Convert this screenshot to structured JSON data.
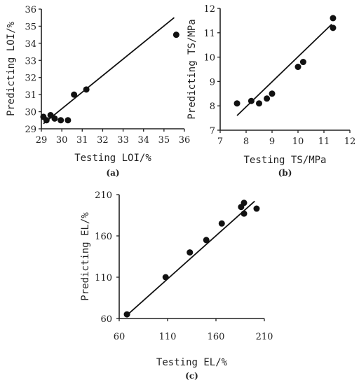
{
  "chart_data": [
    {
      "type": "scatter",
      "panel": "(a)",
      "xlabel": "Testing LOI/%",
      "ylabel": "Predicting LOI/%",
      "xlim": [
        29,
        36
      ],
      "ylim": [
        29,
        36
      ],
      "xticks": [
        "29",
        "30",
        "31",
        "32",
        "33",
        "34",
        "35",
        "36"
      ],
      "yticks": [
        "29",
        "30",
        "31",
        "32",
        "33",
        "34",
        "35",
        "36"
      ],
      "points": [
        {
          "x": 29.1,
          "y": 29.7
        },
        {
          "x": 29.25,
          "y": 29.5
        },
        {
          "x": 29.45,
          "y": 29.8
        },
        {
          "x": 29.65,
          "y": 29.6
        },
        {
          "x": 29.95,
          "y": 29.5
        },
        {
          "x": 30.3,
          "y": 29.5
        },
        {
          "x": 30.6,
          "y": 31.0
        },
        {
          "x": 31.2,
          "y": 31.3
        },
        {
          "x": 35.6,
          "y": 34.5
        }
      ],
      "fit_line": {
        "x": [
          29.1,
          35.5
        ],
        "y": [
          29.3,
          35.5
        ]
      }
    },
    {
      "type": "scatter",
      "panel": "(b)",
      "xlabel": "Testing TS/MPa",
      "ylabel": "Predicting TS/MPa",
      "xlim": [
        7,
        12
      ],
      "ylim": [
        7,
        12
      ],
      "xticks": [
        "7",
        "8",
        "9",
        "10",
        "11",
        "12"
      ],
      "yticks": [
        "7",
        "8",
        "9",
        "10",
        "11",
        "12"
      ],
      "points": [
        {
          "x": 7.65,
          "y": 8.1
        },
        {
          "x": 8.2,
          "y": 8.2
        },
        {
          "x": 8.5,
          "y": 8.1
        },
        {
          "x": 8.8,
          "y": 8.3
        },
        {
          "x": 9.0,
          "y": 8.5
        },
        {
          "x": 10.0,
          "y": 9.6
        },
        {
          "x": 10.2,
          "y": 9.8
        },
        {
          "x": 11.35,
          "y": 11.2
        },
        {
          "x": 11.35,
          "y": 11.6
        }
      ],
      "fit_line": {
        "x": [
          7.65,
          11.3
        ],
        "y": [
          7.6,
          11.35
        ]
      }
    },
    {
      "type": "scatter",
      "panel": "(c)",
      "xlabel": "Testing EL/%",
      "ylabel": "Predicting EL/%",
      "xlim": [
        60,
        210
      ],
      "ylim": [
        60,
        210
      ],
      "xticks": [
        "60",
        "110",
        "160",
        "210"
      ],
      "yticks": [
        "60",
        "110",
        "160",
        "210"
      ],
      "points": [
        {
          "x": 68,
          "y": 65
        },
        {
          "x": 108,
          "y": 110
        },
        {
          "x": 133,
          "y": 140
        },
        {
          "x": 150,
          "y": 155
        },
        {
          "x": 166,
          "y": 175
        },
        {
          "x": 186,
          "y": 195
        },
        {
          "x": 189,
          "y": 200
        },
        {
          "x": 189,
          "y": 187
        },
        {
          "x": 202,
          "y": 193
        }
      ],
      "fit_line": {
        "x": [
          68,
          200
        ],
        "y": [
          64,
          202
        ]
      }
    }
  ]
}
